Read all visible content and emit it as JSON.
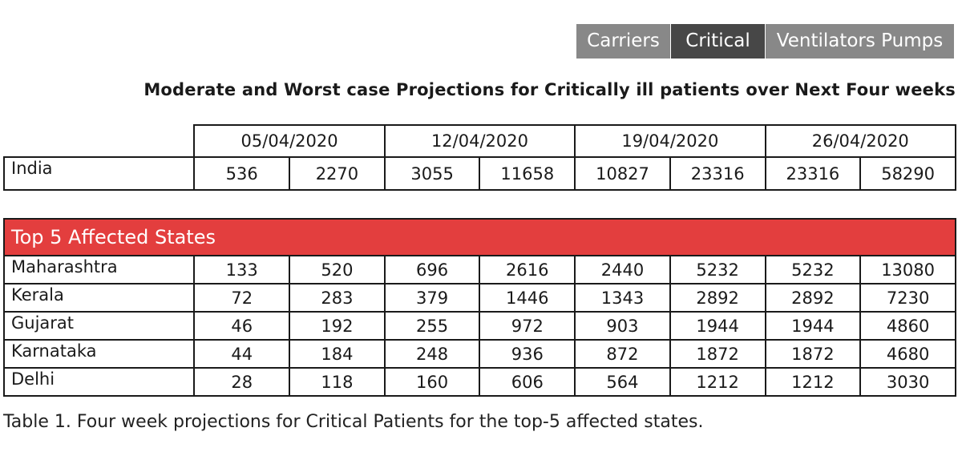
{
  "tabs": [
    {
      "label": "Carriers",
      "active": false
    },
    {
      "label": "Critical",
      "active": true
    },
    {
      "label": "Ventilators  Pumps",
      "active": false
    }
  ],
  "colors": {
    "tab_inactive": "#888888",
    "tab_active": "#474747",
    "banner": "#e33e3e"
  },
  "heading": "Moderate and Worst case Projections for Critically ill patients over Next Four weeks",
  "chart_data": {
    "type": "table",
    "dates": [
      "05/04/2020",
      "12/04/2020",
      "19/04/2020",
      "26/04/2020"
    ],
    "national": {
      "name": "India",
      "values": [
        "536",
        "2270",
        "3055",
        "11658",
        "10827",
        "23316",
        "23316",
        "58290"
      ]
    },
    "section_title": "Top 5 Affected States",
    "states": [
      {
        "name": "Maharashtra",
        "values": [
          "133",
          "520",
          "696",
          "2616",
          "2440",
          "5232",
          "5232",
          "13080"
        ]
      },
      {
        "name": "Kerala",
        "values": [
          "72",
          "283",
          "379",
          "1446",
          "1343",
          "2892",
          "2892",
          "7230"
        ]
      },
      {
        "name": "Gujarat",
        "values": [
          "46",
          "192",
          "255",
          "972",
          "903",
          "1944",
          "1944",
          "4860"
        ]
      },
      {
        "name": "Karnataka",
        "values": [
          "44",
          "184",
          "248",
          "936",
          "872",
          "1872",
          "1872",
          "4680"
        ]
      },
      {
        "name": "Delhi",
        "values": [
          "28",
          "118",
          "160",
          "606",
          "564",
          "1212",
          "1212",
          "3030"
        ]
      }
    ]
  },
  "caption": "Table 1. Four week projections for Critical Patients for the top-5 affected states."
}
